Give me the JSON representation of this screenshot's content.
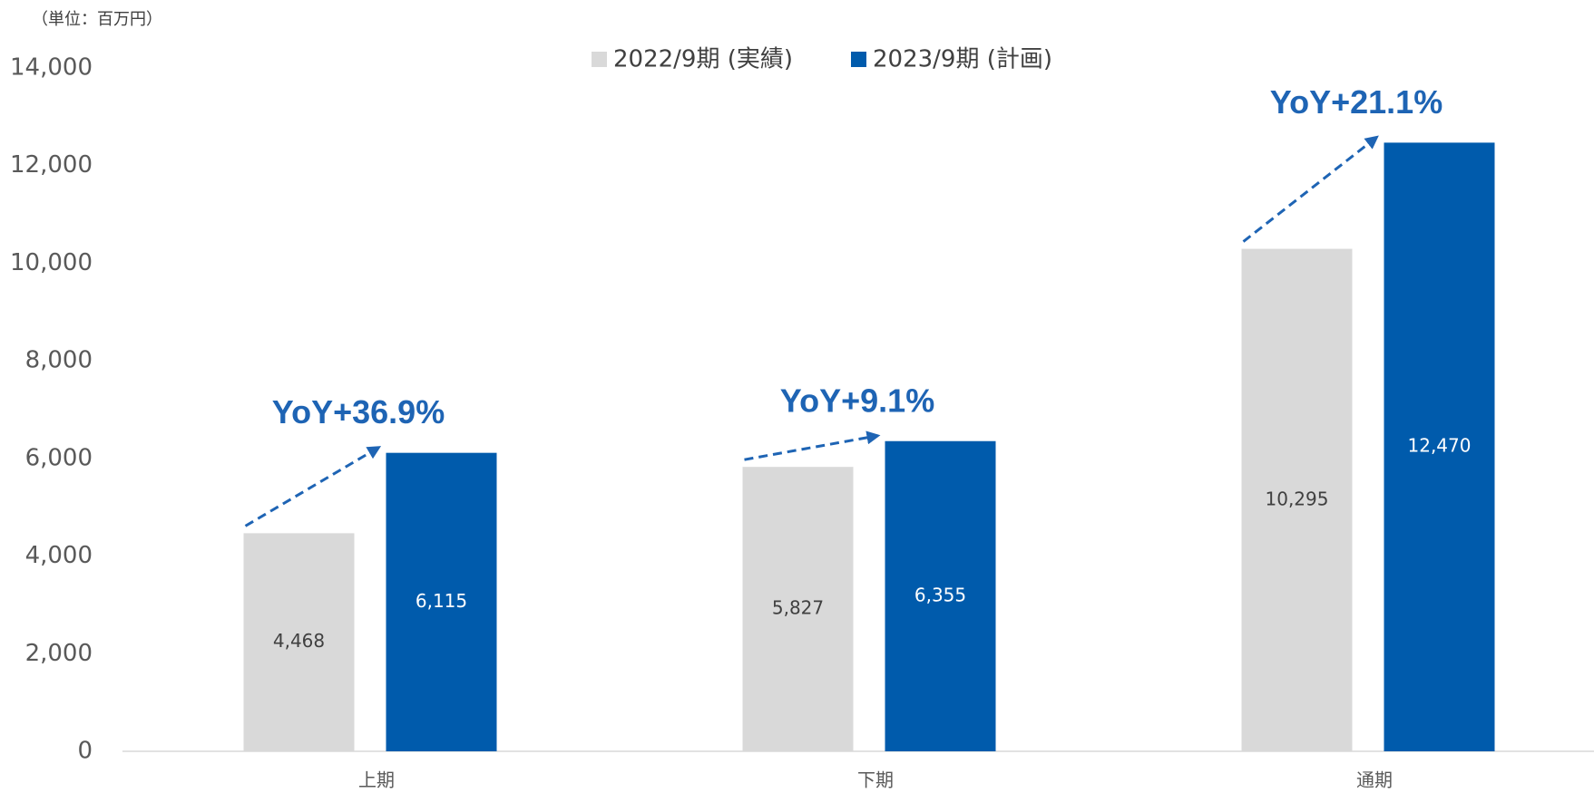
{
  "chart_data": {
    "type": "bar",
    "subtitle": "（単位：百万円）",
    "categories": [
      "上期",
      "下期",
      "通期"
    ],
    "series": [
      {
        "name": "2022/9期 (実績)",
        "color": "#d9d9d9",
        "values": [
          4468,
          5827,
          10295
        ],
        "value_labels": [
          "4,468",
          "5,827",
          "10,295"
        ]
      },
      {
        "name": "2023/9期 (計画)",
        "color": "#005bac",
        "values": [
          6115,
          6355,
          12470
        ],
        "value_labels": [
          "6,115",
          "6,355",
          "12,470"
        ]
      }
    ],
    "annotations": [
      "YoY+36.9%",
      "YoY+9.1%",
      "YoY+21.1%"
    ],
    "ylim": [
      0,
      14000
    ],
    "yticks": [
      0,
      {
        "value": 2000,
        "label": "2,000"
      },
      {
        "value": 4000,
        "label": "4,000"
      },
      {
        "value": 6000,
        "label": "6,000"
      },
      {
        "value": 8000,
        "label": "8,000"
      },
      {
        "value": 10000,
        "label": "10,000"
      },
      {
        "value": 12000,
        "label": "12,000"
      },
      {
        "value": 14000,
        "label": "14,000"
      }
    ],
    "grid": false,
    "legend": "top"
  }
}
